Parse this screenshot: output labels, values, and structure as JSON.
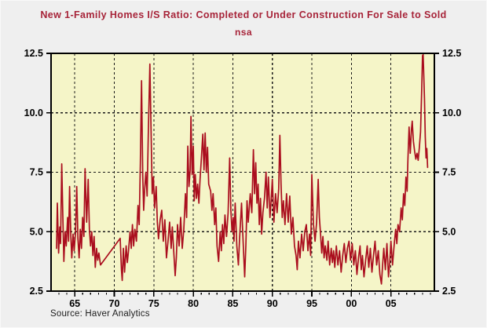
{
  "header": {
    "title": "New 1-Family Homes I/S Ratio: Completed or Under Construction For Sale to Sold",
    "subtitle": "nsa"
  },
  "footer": {
    "source": "Source: Haver Analytics"
  },
  "colors": {
    "page_bg": "#efefef",
    "plot_bg": "#f5f5c8",
    "line": "#aa0e1e",
    "title_text": "#a72439",
    "axis_text": "#000000",
    "grid": "#1a1a1a",
    "frame": "#000000"
  },
  "chart_data": {
    "type": "line",
    "title": "New 1-Family Homes I/S Ratio: Completed or Under Construction For Sale to Sold",
    "subtitle": "nsa",
    "source": "Source: Haver Analytics",
    "grid": "dashed",
    "legend_position": "none",
    "x_axis": {
      "range": [
        1962.0,
        2010.5
      ],
      "major_ticks": [
        1965,
        1970,
        1975,
        1980,
        1985,
        1990,
        1995,
        2000,
        2005
      ],
      "major_labels": [
        "65",
        "70",
        "75",
        "80",
        "85",
        "90",
        "95",
        "00",
        "05"
      ],
      "minor_tick_start": 1963,
      "minor_tick_end": 2010,
      "minor_tick_step": 1
    },
    "y_axis": {
      "range": [
        2.5,
        12.5
      ],
      "ticks": [
        2.5,
        5.0,
        7.5,
        10.0,
        12.5
      ],
      "labels": [
        "2.5",
        "5.0",
        "7.5",
        "10.0",
        "12.5"
      ],
      "gridline_values": [
        5.0,
        7.5,
        10.0
      ],
      "sides": "both"
    },
    "series": [
      {
        "name": "New 1-Family Homes I/S Ratio (nsa)",
        "color": "#aa0e1e",
        "points": [
          [
            1962.7,
            4.3
          ],
          [
            1962.8,
            6.2
          ],
          [
            1962.95,
            4.1
          ],
          [
            1963.1,
            5.2
          ],
          [
            1963.2,
            4.5
          ],
          [
            1963.35,
            7.85
          ],
          [
            1963.5,
            5.5
          ],
          [
            1963.62,
            3.75
          ],
          [
            1963.78,
            5.0
          ],
          [
            1963.92,
            4.4
          ],
          [
            1964.1,
            5.6
          ],
          [
            1964.22,
            4.6
          ],
          [
            1964.35,
            6.9
          ],
          [
            1964.5,
            4.8
          ],
          [
            1964.62,
            3.9
          ],
          [
            1964.78,
            4.9
          ],
          [
            1964.92,
            4.2
          ],
          [
            1965.1,
            5.0
          ],
          [
            1965.25,
            6.9
          ],
          [
            1965.4,
            4.7
          ],
          [
            1965.55,
            3.9
          ],
          [
            1965.7,
            5.1
          ],
          [
            1965.85,
            4.3
          ],
          [
            1966.0,
            5.6
          ],
          [
            1966.15,
            4.8
          ],
          [
            1966.3,
            7.65
          ],
          [
            1966.5,
            5.4
          ],
          [
            1966.7,
            7.2
          ],
          [
            1966.85,
            5.1
          ],
          [
            1967.0,
            4.4
          ],
          [
            1967.15,
            5.0
          ],
          [
            1967.3,
            4.0
          ],
          [
            1967.45,
            4.8
          ],
          [
            1967.6,
            3.5
          ],
          [
            1967.75,
            4.3
          ],
          [
            1967.9,
            3.8
          ],
          [
            1968.05,
            4.1
          ],
          [
            1968.25,
            3.6
          ],
          [
            1970.75,
            4.72
          ],
          [
            1970.9,
            3.4
          ],
          [
            1971.0,
            2.95
          ],
          [
            1971.15,
            4.3
          ],
          [
            1971.3,
            3.3
          ],
          [
            1971.5,
            4.4
          ],
          [
            1971.65,
            3.7
          ],
          [
            1971.8,
            4.2
          ],
          [
            1972.0,
            5.0
          ],
          [
            1972.15,
            4.3
          ],
          [
            1972.3,
            5.3
          ],
          [
            1972.45,
            4.4
          ],
          [
            1972.6,
            5.1
          ],
          [
            1972.8,
            4.6
          ],
          [
            1973.0,
            6.1
          ],
          [
            1973.15,
            5.3
          ],
          [
            1973.3,
            7.9
          ],
          [
            1973.45,
            11.35
          ],
          [
            1973.6,
            7.4
          ],
          [
            1973.72,
            5.9
          ],
          [
            1973.85,
            6.8
          ],
          [
            1974.0,
            7.5
          ],
          [
            1974.15,
            6.5
          ],
          [
            1974.3,
            9.1
          ],
          [
            1974.5,
            12.05
          ],
          [
            1974.65,
            9.3
          ],
          [
            1974.8,
            6.6
          ],
          [
            1974.95,
            7.3
          ],
          [
            1975.1,
            6.0
          ],
          [
            1975.3,
            6.9
          ],
          [
            1975.45,
            5.4
          ],
          [
            1975.6,
            4.7
          ],
          [
            1975.8,
            5.5
          ],
          [
            1976.0,
            5.9
          ],
          [
            1976.2,
            4.6
          ],
          [
            1976.4,
            5.5
          ],
          [
            1976.6,
            3.9
          ],
          [
            1976.8,
            4.6
          ],
          [
            1977.0,
            5.4
          ],
          [
            1977.2,
            4.3
          ],
          [
            1977.35,
            5.2
          ],
          [
            1977.55,
            4.0
          ],
          [
            1977.7,
            3.15
          ],
          [
            1977.85,
            3.9
          ],
          [
            1978.0,
            5.3
          ],
          [
            1978.2,
            4.4
          ],
          [
            1978.4,
            5.6
          ],
          [
            1978.6,
            4.3
          ],
          [
            1978.8,
            5.1
          ],
          [
            1979.0,
            6.6
          ],
          [
            1979.15,
            5.6
          ],
          [
            1979.3,
            8.6
          ],
          [
            1979.45,
            6.9
          ],
          [
            1979.6,
            7.6
          ],
          [
            1979.7,
            9.85
          ],
          [
            1979.85,
            7.4
          ],
          [
            1980.0,
            8.6
          ],
          [
            1980.12,
            6.3
          ],
          [
            1980.25,
            7.4
          ],
          [
            1980.4,
            6.4
          ],
          [
            1980.55,
            7.0
          ],
          [
            1980.7,
            6.2
          ],
          [
            1980.85,
            7.2
          ],
          [
            1981.0,
            8.0
          ],
          [
            1981.2,
            9.1
          ],
          [
            1981.35,
            7.6
          ],
          [
            1981.5,
            9.15
          ],
          [
            1981.65,
            7.5
          ],
          [
            1981.8,
            8.55
          ],
          [
            1981.95,
            7.0
          ],
          [
            1982.2,
            6.7
          ],
          [
            1982.35,
            5.9
          ],
          [
            1982.5,
            6.6
          ],
          [
            1982.7,
            5.3
          ],
          [
            1982.85,
            6.0
          ],
          [
            1983.0,
            4.4
          ],
          [
            1983.2,
            3.75
          ],
          [
            1983.4,
            5.0
          ],
          [
            1983.55,
            4.2
          ],
          [
            1983.7,
            5.3
          ],
          [
            1983.85,
            4.5
          ],
          [
            1984.0,
            5.7
          ],
          [
            1984.2,
            4.8
          ],
          [
            1984.4,
            5.8
          ],
          [
            1984.6,
            8.1
          ],
          [
            1984.75,
            5.9
          ],
          [
            1984.9,
            5.0
          ],
          [
            1985.05,
            5.6
          ],
          [
            1985.15,
            4.6
          ],
          [
            1985.3,
            6.2
          ],
          [
            1985.5,
            4.4
          ],
          [
            1985.7,
            3.6
          ],
          [
            1985.85,
            4.7
          ],
          [
            1986.1,
            6.2
          ],
          [
            1986.3,
            4.6
          ],
          [
            1986.5,
            3.1
          ],
          [
            1986.65,
            4.4
          ],
          [
            1986.8,
            6.3
          ],
          [
            1986.95,
            5.4
          ],
          [
            1987.2,
            6.6
          ],
          [
            1987.4,
            5.8
          ],
          [
            1987.6,
            8.45
          ],
          [
            1987.75,
            6.6
          ],
          [
            1987.9,
            7.9
          ],
          [
            1988.05,
            6.2
          ],
          [
            1988.2,
            7.0
          ],
          [
            1988.35,
            5.3
          ],
          [
            1988.5,
            6.4
          ],
          [
            1988.65,
            4.9
          ],
          [
            1988.8,
            5.8
          ],
          [
            1989.0,
            6.4
          ],
          [
            1989.2,
            7.5
          ],
          [
            1989.35,
            6.0
          ],
          [
            1989.5,
            7.3
          ],
          [
            1989.7,
            5.6
          ],
          [
            1989.85,
            6.3
          ],
          [
            1990.0,
            7.2
          ],
          [
            1990.2,
            5.4
          ],
          [
            1990.4,
            6.6
          ],
          [
            1990.6,
            5.8
          ],
          [
            1990.8,
            6.8
          ],
          [
            1990.95,
            9.05
          ],
          [
            1991.1,
            7.0
          ],
          [
            1991.25,
            5.6
          ],
          [
            1991.4,
            6.3
          ],
          [
            1991.6,
            5.3
          ],
          [
            1991.8,
            6.6
          ],
          [
            1992.0,
            5.4
          ],
          [
            1992.2,
            6.5
          ],
          [
            1992.4,
            4.9
          ],
          [
            1992.6,
            5.6
          ],
          [
            1992.8,
            4.4
          ],
          [
            1993.0,
            4.0
          ],
          [
            1993.15,
            3.4
          ],
          [
            1993.3,
            4.6
          ],
          [
            1993.5,
            3.9
          ],
          [
            1993.7,
            4.9
          ],
          [
            1993.9,
            4.2
          ],
          [
            1994.1,
            5.0
          ],
          [
            1994.3,
            5.3
          ],
          [
            1994.5,
            4.2
          ],
          [
            1994.7,
            4.9
          ],
          [
            1994.85,
            4.0
          ],
          [
            1995.0,
            7.4
          ],
          [
            1995.2,
            5.3
          ],
          [
            1995.4,
            4.6
          ],
          [
            1995.6,
            5.4
          ],
          [
            1995.8,
            7.2
          ],
          [
            1995.95,
            5.6
          ],
          [
            1996.1,
            4.9
          ],
          [
            1996.25,
            4.1
          ],
          [
            1996.4,
            4.8
          ],
          [
            1996.55,
            3.9
          ],
          [
            1996.7,
            4.4
          ],
          [
            1996.9,
            3.8
          ],
          [
            1997.05,
            4.6
          ],
          [
            1997.25,
            3.6
          ],
          [
            1997.45,
            4.3
          ],
          [
            1997.6,
            3.7
          ],
          [
            1997.75,
            4.2
          ],
          [
            1997.9,
            3.5
          ],
          [
            1998.1,
            4.4
          ],
          [
            1998.3,
            3.6
          ],
          [
            1998.5,
            4.2
          ],
          [
            1998.7,
            3.3
          ],
          [
            1998.9,
            4.0
          ],
          [
            1999.1,
            4.5
          ],
          [
            1999.3,
            3.7
          ],
          [
            1999.5,
            4.3
          ],
          [
            1999.7,
            4.6
          ],
          [
            1999.9,
            3.8
          ],
          [
            2000.1,
            4.5
          ],
          [
            2000.3,
            3.6
          ],
          [
            2000.5,
            4.2
          ],
          [
            2000.7,
            3.2
          ],
          [
            2000.9,
            3.9
          ],
          [
            2001.1,
            4.4
          ],
          [
            2001.25,
            3.4
          ],
          [
            2001.4,
            4.0
          ],
          [
            2001.6,
            3.1
          ],
          [
            2001.8,
            3.8
          ],
          [
            2002.0,
            4.4
          ],
          [
            2002.2,
            3.5
          ],
          [
            2002.4,
            4.3
          ],
          [
            2002.6,
            3.3
          ],
          [
            2002.8,
            4.0
          ],
          [
            2003.0,
            4.6
          ],
          [
            2003.2,
            3.6
          ],
          [
            2003.4,
            4.2
          ],
          [
            2003.6,
            3.2
          ],
          [
            2003.8,
            2.8
          ],
          [
            2003.95,
            3.6
          ],
          [
            2004.1,
            4.3
          ],
          [
            2004.3,
            3.4
          ],
          [
            2004.5,
            4.5
          ],
          [
            2004.7,
            3.1
          ],
          [
            2004.85,
            3.7
          ],
          [
            2005.0,
            4.6
          ],
          [
            2005.2,
            3.6
          ],
          [
            2005.4,
            4.4
          ],
          [
            2005.6,
            5.1
          ],
          [
            2005.75,
            4.5
          ],
          [
            2005.9,
            5.3
          ],
          [
            2006.1,
            5.0
          ],
          [
            2006.3,
            6.0
          ],
          [
            2006.45,
            5.5
          ],
          [
            2006.6,
            6.6
          ],
          [
            2006.75,
            6.1
          ],
          [
            2006.9,
            7.3
          ],
          [
            2007.05,
            6.7
          ],
          [
            2007.15,
            8.0
          ],
          [
            2007.3,
            9.4
          ],
          [
            2007.45,
            8.3
          ],
          [
            2007.6,
            9.3
          ],
          [
            2007.7,
            9.65
          ],
          [
            2007.85,
            8.8
          ],
          [
            2008.0,
            8.4
          ],
          [
            2008.15,
            8.05
          ],
          [
            2008.3,
            8.3
          ],
          [
            2008.45,
            8.0
          ],
          [
            2008.6,
            8.55
          ],
          [
            2008.75,
            9.2
          ],
          [
            2008.9,
            11.0
          ],
          [
            2009.0,
            12.4
          ],
          [
            2009.08,
            12.45
          ],
          [
            2009.17,
            11.5
          ],
          [
            2009.25,
            10.6
          ],
          [
            2009.35,
            9.0
          ],
          [
            2009.45,
            8.1
          ],
          [
            2009.55,
            8.5
          ],
          [
            2009.65,
            7.7
          ]
        ]
      }
    ]
  }
}
